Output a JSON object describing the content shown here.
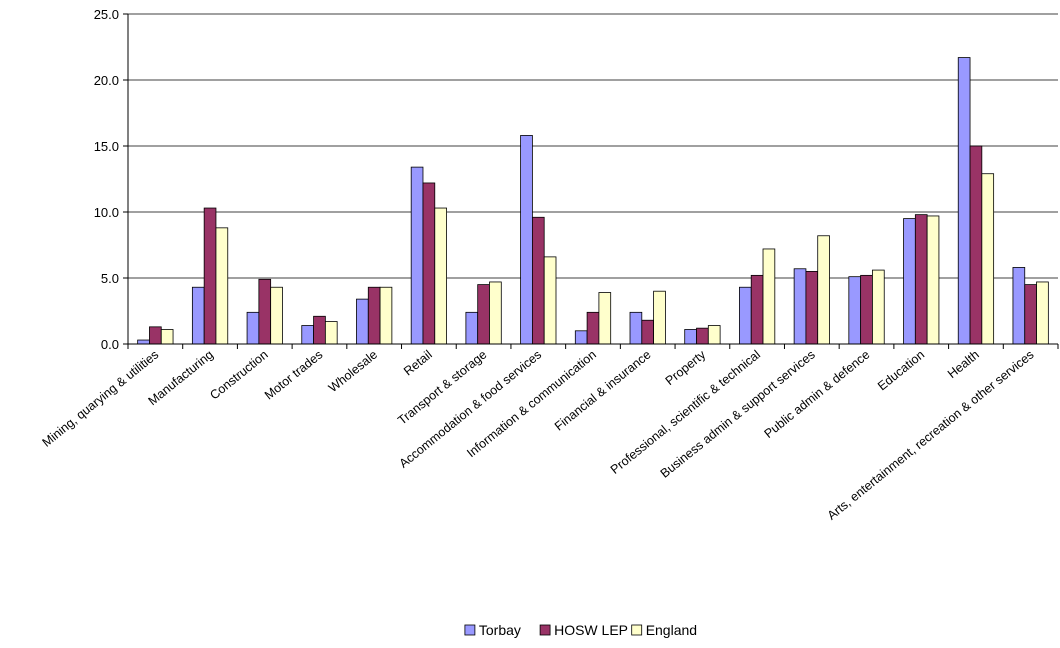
{
  "chart_data": {
    "type": "bar",
    "categories": [
      "Mining, quarying & utilities",
      "Manufacturing",
      "Construction",
      "Motor trades",
      "Wholesale",
      "Retail",
      "Transport & storage",
      "Accommodation & food services",
      "Information & communication",
      "Financial & insurance",
      "Property",
      "Professional, scientific & technical",
      "Business admin & support services",
      "Public admin & defence",
      "Education",
      "Health",
      "Arts, entertainment, recreation & other services"
    ],
    "series": [
      {
        "name": "Torbay",
        "color": "#9999ff",
        "values": [
          0.3,
          4.3,
          2.4,
          1.4,
          3.4,
          13.4,
          2.4,
          15.8,
          1.0,
          2.4,
          1.1,
          4.3,
          5.7,
          5.1,
          9.5,
          21.7,
          5.8
        ]
      },
      {
        "name": "HOSW LEP",
        "color": "#993366",
        "values": [
          1.3,
          10.3,
          4.9,
          2.1,
          4.3,
          12.2,
          4.5,
          9.6,
          2.4,
          1.8,
          1.2,
          5.2,
          5.5,
          5.2,
          9.8,
          15.0,
          4.5
        ]
      },
      {
        "name": "England",
        "color": "#ffffcc",
        "values": [
          1.1,
          8.8,
          4.3,
          1.7,
          4.3,
          10.3,
          4.7,
          6.6,
          3.9,
          4.0,
          1.4,
          7.2,
          8.2,
          5.6,
          9.7,
          12.9,
          4.7
        ]
      }
    ],
    "yticks": [
      "0.0",
      "5.0",
      "10.0",
      "15.0",
      "20.0",
      "25.0"
    ],
    "ylim": [
      0,
      25
    ],
    "grid": true,
    "legend_position": "bottom-center",
    "title": "",
    "xlabel": "",
    "ylabel": ""
  }
}
